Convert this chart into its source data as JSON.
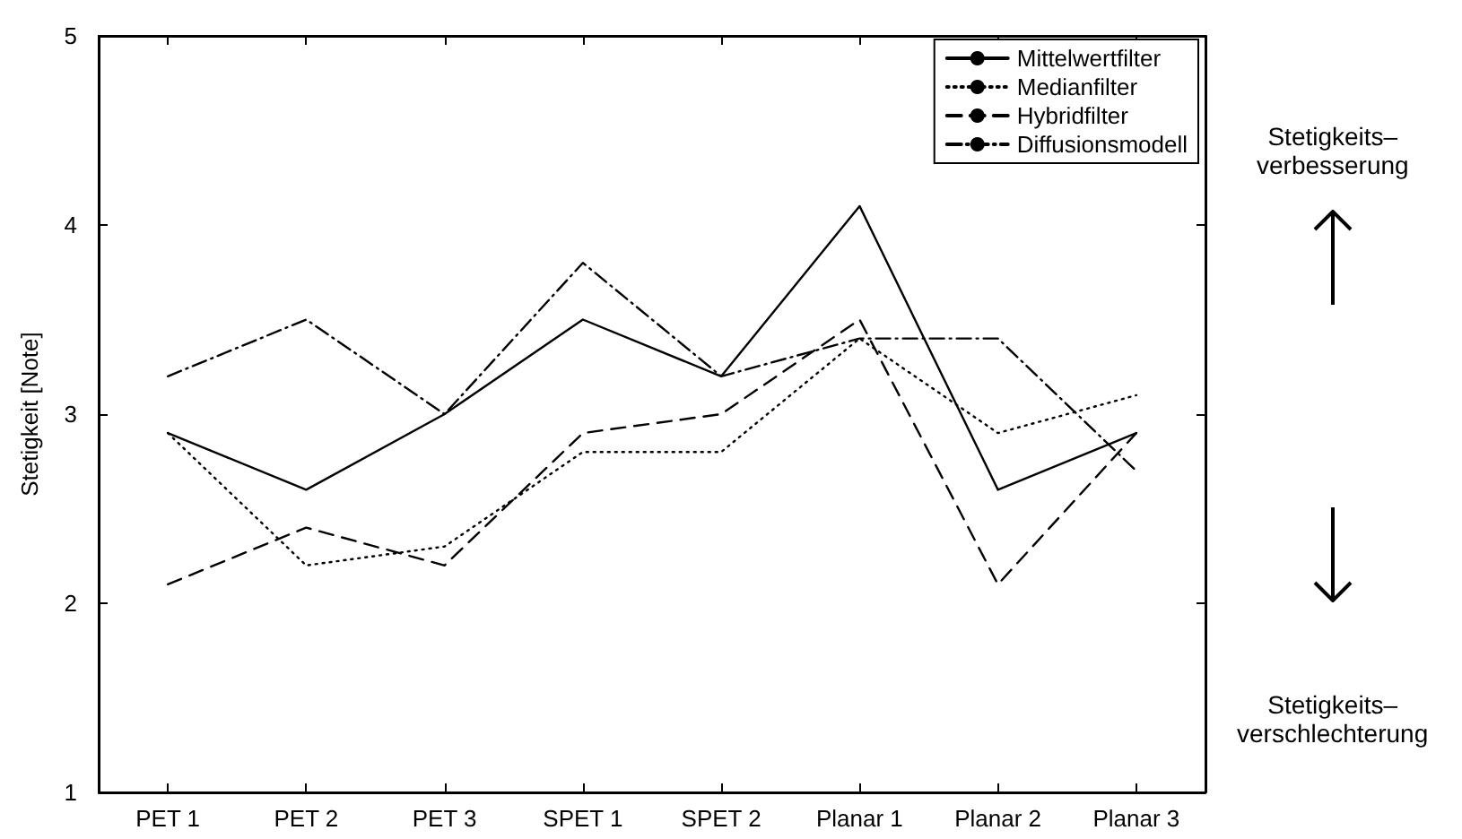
{
  "chart_data": {
    "type": "line",
    "ylabel": "Stetigkeit [Note]",
    "categories": [
      "PET 1",
      "PET 2",
      "PET 3",
      "SPET 1",
      "SPET 2",
      "Planar 1",
      "Planar 2",
      "Planar 3"
    ],
    "series": [
      {
        "name": "Mittelwertfilter",
        "color": "#000000",
        "line_style": "solid",
        "values": [
          2.9,
          2.6,
          3.0,
          3.5,
          3.2,
          4.1,
          2.6,
          2.9
        ]
      },
      {
        "name": "Medianfilter",
        "color": "#000000",
        "line_style": "dotted",
        "values": [
          2.9,
          2.2,
          2.3,
          2.8,
          2.8,
          3.4,
          2.9,
          3.1
        ]
      },
      {
        "name": "Hybridfilter",
        "color": "#000000",
        "line_style": "dashed",
        "values": [
          2.1,
          2.4,
          2.2,
          2.9,
          3.0,
          3.5,
          2.1,
          2.9
        ]
      },
      {
        "name": "Diffusionsmodell",
        "color": "#000000",
        "line_style": "dashdot",
        "values": [
          3.2,
          3.5,
          3.0,
          3.8,
          3.2,
          3.4,
          3.4,
          2.7
        ]
      }
    ],
    "ylim": [
      1,
      5
    ],
    "yticks": [
      1,
      2,
      3,
      4,
      5
    ],
    "grid": false,
    "legend": "top right",
    "marker": "none",
    "annotations": [
      "Stetigkeits–\nverbesserung",
      "Stetigkeits–\nverschlechterung"
    ]
  }
}
